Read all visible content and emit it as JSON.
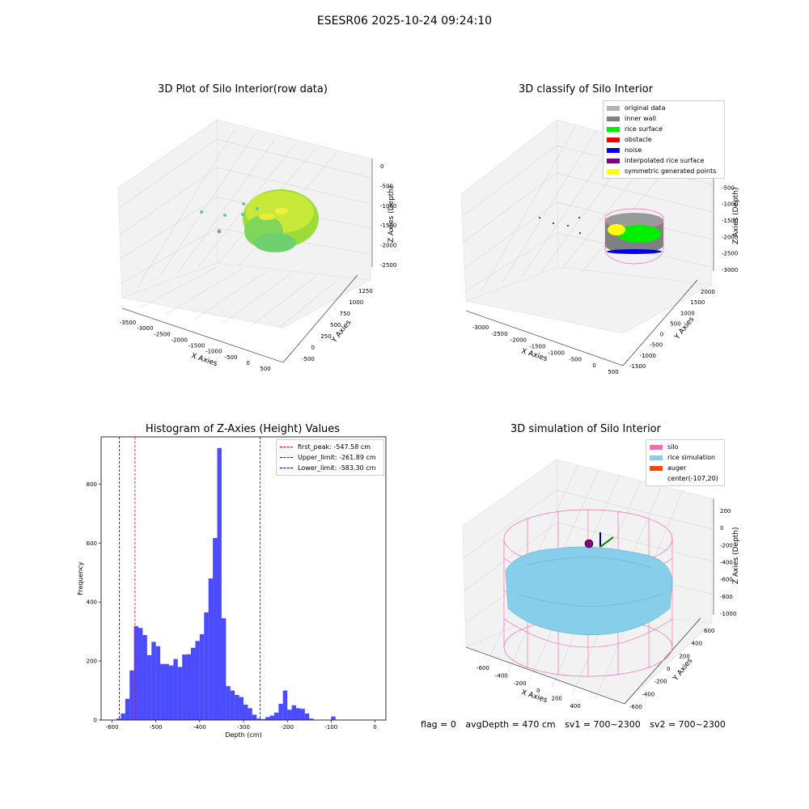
{
  "suptitle": "ESESR06 2025-10-24 09:24:10",
  "panels": {
    "raw": {
      "title": "3D Plot of Silo Interior(row data)",
      "xlabel": "X Axies",
      "ylabel": "Y Axies",
      "zlabel": "Z Axies (Depth)",
      "xticks": [
        "-3500",
        "-3000",
        "-2500",
        "-2000",
        "-1500",
        "-1000",
        "-500",
        "0",
        "500"
      ],
      "yticks": [
        "-500",
        "0",
        "250",
        "500",
        "750",
        "1000",
        "1250"
      ],
      "zticks": [
        "0",
        "-500",
        "-1000",
        "-1500",
        "-2000",
        "-2500"
      ]
    },
    "classify": {
      "title": "3D classify of Silo Interior",
      "xlabel": "X Axies",
      "ylabel": "Y Axies",
      "zlabel": "Z Axies (Depth)",
      "xticks": [
        "-3000",
        "-2500",
        "-2000",
        "-1500",
        "-1000",
        "-500",
        "0",
        "500"
      ],
      "yticks": [
        "-1500",
        "-1000",
        "-500",
        "0",
        "500",
        "1000",
        "1500",
        "2000"
      ],
      "zticks": [
        "0",
        "-500",
        "-1000",
        "-1500",
        "-2000",
        "-2500",
        "-3000"
      ],
      "legend": [
        {
          "label": "original data",
          "color": "#b3b3b3"
        },
        {
          "label": "inner wall",
          "color": "#808080"
        },
        {
          "label": "rice surface",
          "color": "#00ee00"
        },
        {
          "label": "obstacle",
          "color": "#ee0000"
        },
        {
          "label": "noise",
          "color": "#0000ee"
        },
        {
          "label": "interpolated rice surface",
          "color": "#800080"
        },
        {
          "label": "symmetric generated points",
          "color": "#ffff00"
        }
      ]
    },
    "simulation": {
      "title": "3D simulation of Silo Interior",
      "xlabel": "X Axies",
      "ylabel": "Y Axies",
      "zlabel": "Z Axies (Depth)",
      "xticks": [
        "-600",
        "-400",
        "-200",
        "0",
        "200",
        "400"
      ],
      "yticks": [
        "-600",
        "-400",
        "-200",
        "0",
        "200",
        "400",
        "600"
      ],
      "zticks": [
        "200",
        "0",
        "-200",
        "-400",
        "-600",
        "-800",
        "-1000"
      ],
      "legend": [
        {
          "label": "silo",
          "color": "#ff69b4"
        },
        {
          "label": "rice simulation",
          "color": "#87ceeb"
        },
        {
          "label": "auger",
          "color": "#ff4500"
        },
        {
          "label": "center(-107,20)",
          "color": "#ffffff"
        }
      ]
    }
  },
  "status": {
    "flag": "flag = 0",
    "avg": "avgDepth = 470 cm",
    "sv1": "sv1 = 700~2300",
    "sv2": "sv2 = 700~2300"
  },
  "chart_data": {
    "type": "bar",
    "title": "Histogram of Z-Axies (Height) Values",
    "xlabel": "Depth (cm)",
    "ylabel": "Frequency",
    "xlim": [
      -625,
      25
    ],
    "ylim": [
      0,
      960
    ],
    "xticks": [
      -600,
      -500,
      -400,
      -300,
      -200,
      -100,
      0
    ],
    "yticks": [
      0,
      200,
      400,
      600,
      800
    ],
    "bin_width": 10,
    "bins": [
      {
        "x": -590,
        "v": 5
      },
      {
        "x": -580,
        "v": 22
      },
      {
        "x": -570,
        "v": 72
      },
      {
        "x": -560,
        "v": 168
      },
      {
        "x": -550,
        "v": 318
      },
      {
        "x": -540,
        "v": 312
      },
      {
        "x": -530,
        "v": 288
      },
      {
        "x": -520,
        "v": 220
      },
      {
        "x": -510,
        "v": 265
      },
      {
        "x": -500,
        "v": 250
      },
      {
        "x": -490,
        "v": 190
      },
      {
        "x": -480,
        "v": 190
      },
      {
        "x": -470,
        "v": 185
      },
      {
        "x": -460,
        "v": 207
      },
      {
        "x": -450,
        "v": 180
      },
      {
        "x": -440,
        "v": 222
      },
      {
        "x": -430,
        "v": 223
      },
      {
        "x": -420,
        "v": 245
      },
      {
        "x": -410,
        "v": 268
      },
      {
        "x": -400,
        "v": 291
      },
      {
        "x": -390,
        "v": 365
      },
      {
        "x": -380,
        "v": 480
      },
      {
        "x": -370,
        "v": 617
      },
      {
        "x": -360,
        "v": 922
      },
      {
        "x": -350,
        "v": 345
      },
      {
        "x": -340,
        "v": 115
      },
      {
        "x": -330,
        "v": 100
      },
      {
        "x": -320,
        "v": 85
      },
      {
        "x": -310,
        "v": 78
      },
      {
        "x": -300,
        "v": 52
      },
      {
        "x": -290,
        "v": 40
      },
      {
        "x": -280,
        "v": 18
      },
      {
        "x": -270,
        "v": 5
      },
      {
        "x": -260,
        "v": 3
      },
      {
        "x": -250,
        "v": 10
      },
      {
        "x": -240,
        "v": 15
      },
      {
        "x": -230,
        "v": 25
      },
      {
        "x": -220,
        "v": 55
      },
      {
        "x": -210,
        "v": 100
      },
      {
        "x": -200,
        "v": 35
      },
      {
        "x": -190,
        "v": 50
      },
      {
        "x": -180,
        "v": 40
      },
      {
        "x": -170,
        "v": 38
      },
      {
        "x": -160,
        "v": 22
      },
      {
        "x": -150,
        "v": 5
      },
      {
        "x": -100,
        "v": 12
      }
    ],
    "bar_color": "#0000ff",
    "lines": [
      {
        "x": -547.58,
        "color": "#ff0000",
        "label": "first_peak: -547.58 cm"
      },
      {
        "x": -261.89,
        "color": "#0000ff",
        "label": "Upper_limit: -261.89 cm"
      },
      {
        "x": -583.3,
        "color": "#0000ff",
        "label": "Lower_limit: -583.30 cm"
      }
    ]
  }
}
